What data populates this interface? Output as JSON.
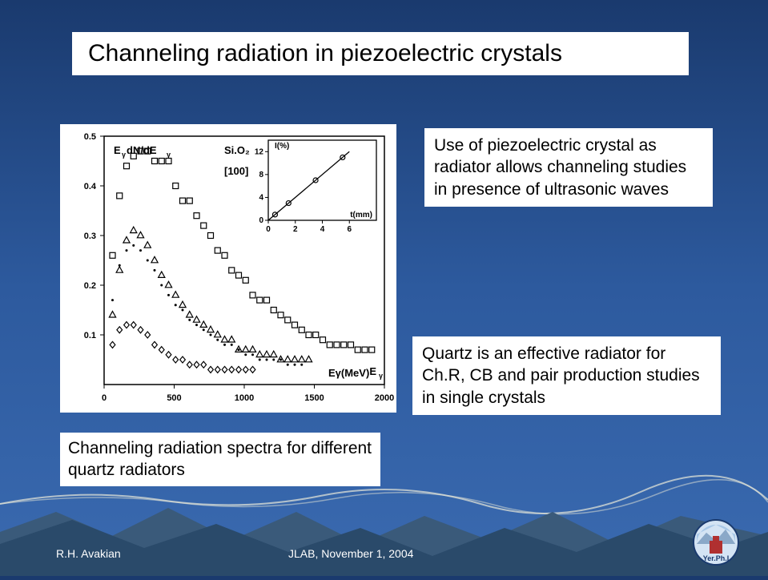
{
  "title": "Channeling radiation in piezoelectric crystals",
  "text1": "Use of piezoelectric crystal as radiator allows channeling studies in presence of ultrasonic waves",
  "text2": "Quartz is an effective radiator for Ch.R, CB and pair production studies in single crystals",
  "caption": "Channeling radiation spectra for different  quartz radiators",
  "footer_author": "R.H. Avakian",
  "footer_center": "JLAB, November 1, 2004",
  "logo_text": "Yer.Ph.I",
  "main_chart": {
    "type": "scatter",
    "ylabel_formula": "EγdN/dEγ",
    "material": "Si.O₂",
    "direction": "[100]",
    "xlabel": "Eγ(MeV)",
    "xlim": [
      0,
      2000
    ],
    "xticks": [
      0,
      500,
      1000,
      1500,
      2000
    ],
    "ylim": [
      0,
      0.5
    ],
    "yticks": [
      0.1,
      0.2,
      0.3,
      0.4,
      0.5
    ],
    "background_color": "#ffffff",
    "axis_color": "#000000",
    "tick_fontsize": 11,
    "label_fontsize": 13,
    "series": [
      {
        "marker": "square",
        "marker_size": 7,
        "marker_color": "#000000",
        "marker_fill": "none",
        "points": [
          [
            60,
            0.26
          ],
          [
            110,
            0.38
          ],
          [
            160,
            0.44
          ],
          [
            210,
            0.46
          ],
          [
            260,
            0.47
          ],
          [
            310,
            0.47
          ],
          [
            360,
            0.45
          ],
          [
            410,
            0.45
          ],
          [
            460,
            0.45
          ],
          [
            510,
            0.4
          ],
          [
            560,
            0.37
          ],
          [
            610,
            0.37
          ],
          [
            660,
            0.34
          ],
          [
            710,
            0.32
          ],
          [
            760,
            0.3
          ],
          [
            810,
            0.27
          ],
          [
            860,
            0.26
          ],
          [
            910,
            0.23
          ],
          [
            960,
            0.22
          ],
          [
            1010,
            0.21
          ],
          [
            1060,
            0.18
          ],
          [
            1110,
            0.17
          ],
          [
            1160,
            0.17
          ],
          [
            1210,
            0.15
          ],
          [
            1260,
            0.14
          ],
          [
            1310,
            0.13
          ],
          [
            1360,
            0.12
          ],
          [
            1410,
            0.11
          ],
          [
            1460,
            0.1
          ],
          [
            1510,
            0.1
          ],
          [
            1560,
            0.09
          ],
          [
            1610,
            0.08
          ],
          [
            1660,
            0.08
          ],
          [
            1710,
            0.08
          ],
          [
            1760,
            0.08
          ],
          [
            1810,
            0.07
          ],
          [
            1860,
            0.07
          ],
          [
            1910,
            0.07
          ]
        ]
      },
      {
        "marker": "triangle",
        "marker_size": 7,
        "marker_color": "#000000",
        "marker_fill": "none",
        "points": [
          [
            60,
            0.14
          ],
          [
            110,
            0.23
          ],
          [
            160,
            0.29
          ],
          [
            210,
            0.31
          ],
          [
            260,
            0.3
          ],
          [
            310,
            0.28
          ],
          [
            360,
            0.25
          ],
          [
            410,
            0.22
          ],
          [
            460,
            0.2
          ],
          [
            510,
            0.18
          ],
          [
            560,
            0.16
          ],
          [
            610,
            0.14
          ],
          [
            660,
            0.13
          ],
          [
            710,
            0.12
          ],
          [
            760,
            0.11
          ],
          [
            810,
            0.1
          ],
          [
            860,
            0.09
          ],
          [
            910,
            0.09
          ],
          [
            960,
            0.07
          ],
          [
            1010,
            0.07
          ],
          [
            1060,
            0.07
          ],
          [
            1110,
            0.06
          ],
          [
            1160,
            0.06
          ],
          [
            1210,
            0.06
          ],
          [
            1260,
            0.05
          ],
          [
            1310,
            0.05
          ],
          [
            1360,
            0.05
          ],
          [
            1410,
            0.05
          ],
          [
            1460,
            0.05
          ]
        ]
      },
      {
        "marker": "diamond",
        "marker_size": 6,
        "marker_color": "#000000",
        "marker_fill": "none",
        "points": [
          [
            60,
            0.08
          ],
          [
            110,
            0.11
          ],
          [
            160,
            0.12
          ],
          [
            210,
            0.12
          ],
          [
            260,
            0.11
          ],
          [
            310,
            0.1
          ],
          [
            360,
            0.08
          ],
          [
            410,
            0.07
          ],
          [
            460,
            0.06
          ],
          [
            510,
            0.05
          ],
          [
            560,
            0.05
          ],
          [
            610,
            0.04
          ],
          [
            660,
            0.04
          ],
          [
            710,
            0.04
          ],
          [
            760,
            0.03
          ],
          [
            810,
            0.03
          ],
          [
            860,
            0.03
          ],
          [
            910,
            0.03
          ],
          [
            960,
            0.03
          ],
          [
            1010,
            0.03
          ],
          [
            1060,
            0.03
          ]
        ]
      },
      {
        "marker": "dot",
        "marker_size": 3,
        "marker_color": "#000000",
        "marker_fill": "#000000",
        "points": [
          [
            60,
            0.17
          ],
          [
            110,
            0.24
          ],
          [
            160,
            0.27
          ],
          [
            210,
            0.28
          ],
          [
            260,
            0.27
          ],
          [
            310,
            0.25
          ],
          [
            360,
            0.23
          ],
          [
            410,
            0.2
          ],
          [
            460,
            0.18
          ],
          [
            510,
            0.16
          ],
          [
            560,
            0.15
          ],
          [
            610,
            0.13
          ],
          [
            660,
            0.12
          ],
          [
            710,
            0.11
          ],
          [
            760,
            0.1
          ],
          [
            810,
            0.09
          ],
          [
            860,
            0.08
          ],
          [
            910,
            0.08
          ],
          [
            960,
            0.07
          ],
          [
            1010,
            0.06
          ],
          [
            1060,
            0.06
          ],
          [
            1110,
            0.05
          ],
          [
            1160,
            0.05
          ],
          [
            1210,
            0.05
          ],
          [
            1260,
            0.05
          ],
          [
            1310,
            0.04
          ],
          [
            1360,
            0.04
          ],
          [
            1410,
            0.04
          ]
        ]
      }
    ]
  },
  "inset_chart": {
    "type": "scatter-line",
    "ylabel": "I(%)",
    "xlabel": "t(mm)",
    "xlim": [
      0,
      8
    ],
    "xticks": [
      0,
      2,
      4,
      6
    ],
    "ylim": [
      0,
      14
    ],
    "yticks": [
      0,
      4,
      8,
      12
    ],
    "marker": "circle",
    "marker_size": 6,
    "marker_fill": "none",
    "line_color": "#000000",
    "points": [
      [
        0.5,
        1
      ],
      [
        1.5,
        3
      ],
      [
        3.5,
        7
      ],
      [
        5.5,
        11
      ]
    ],
    "line": [
      [
        0,
        0
      ],
      [
        6,
        12
      ]
    ]
  },
  "slide_bg_gradient": [
    "#1a3a6e",
    "#2d5a9e",
    "#3a6ab0"
  ],
  "mountain_colors": {
    "cloud_line": "#e8e8d8",
    "back": "#4a6a8a",
    "mid": "#3a5a7a",
    "front": "#2a4a6a"
  },
  "logo_colors": {
    "stroke": "#1a3a6e",
    "fill": "#d4e4f4",
    "building": "#b03030",
    "mountain": "#8aa8c8",
    "sky": "#a8c8e8"
  }
}
